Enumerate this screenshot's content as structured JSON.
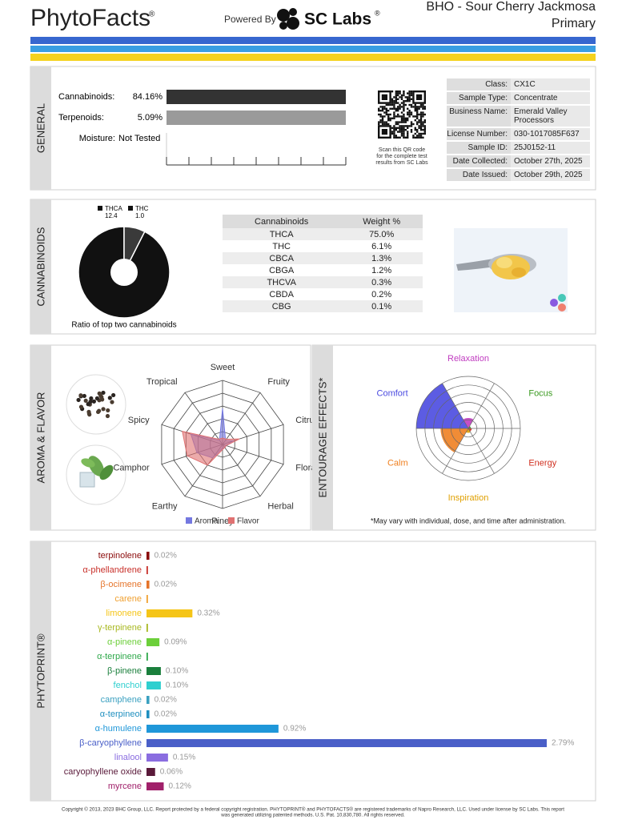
{
  "header": {
    "brand": "PhytoFacts",
    "brand_mark": "®",
    "powered_by": "Powered By",
    "lab": "SC Labs",
    "lab_mark": "®",
    "product": "BHO - Sour Cherry Jackmosa",
    "grade": "Primary"
  },
  "general": {
    "label": "GENERAL",
    "rows": [
      {
        "name": "Cannabinoids:",
        "value": 84.16,
        "value_label": "84.16%",
        "color": "#333333"
      },
      {
        "name": "Terpenoids:",
        "value": 5.09,
        "value_label": "5.09%",
        "color": "#9a9a9a"
      }
    ],
    "moisture": {
      "name": "Moisture:",
      "value": "Not Tested"
    },
    "qr_caption": [
      "Scan this QR code",
      "for the complete test",
      "results from SC Labs"
    ],
    "info": [
      {
        "label": "Class:",
        "value": "CX1C"
      },
      {
        "label": "Sample Type:",
        "value": "Concentrate"
      },
      {
        "label": "Business Name:",
        "value": "Emerald Valley Processors"
      },
      {
        "label": "License Number:",
        "value": "030-1017085F637"
      },
      {
        "label": "Sample ID:",
        "value": "25J0152-11"
      },
      {
        "label": "Date Collected:",
        "value": "October 27th, 2025"
      },
      {
        "label": "Date Issued:",
        "value": "October 29th, 2025"
      }
    ]
  },
  "cannabinoids": {
    "label": "CANNABINOIDS",
    "ratio": {
      "type": "pie",
      "caption": "Ratio of top two cannabinoids",
      "series": [
        {
          "name": "THCA",
          "value": 12.4,
          "color": "#111111"
        },
        {
          "name": "THC",
          "value": 1.0,
          "value_label": "1.0",
          "color": "#3a3a3a"
        }
      ]
    },
    "table": {
      "columns": [
        "Cannabinoids",
        "Weight %"
      ],
      "rows": [
        [
          "THCA",
          "75.0%"
        ],
        [
          "THC",
          "6.1%"
        ],
        [
          "CBCA",
          "1.3%"
        ],
        [
          "CBGA",
          "1.2%"
        ],
        [
          "THCVA",
          "0.3%"
        ],
        [
          "CBDA",
          "0.2%"
        ],
        [
          "CBG",
          "0.1%"
        ]
      ]
    }
  },
  "aroma_flavor": {
    "label": "AROMA & FLAVOR",
    "type": "radar",
    "categories": [
      "Sweet",
      "Fruity",
      "Citrusy",
      "Floral",
      "Herbal",
      "Piney",
      "Earthy",
      "Camphor",
      "Spicy",
      "Tropical"
    ],
    "rlim": [
      0,
      5
    ],
    "rticks": [
      1,
      2,
      3,
      4,
      5
    ],
    "series": [
      {
        "name": "Aroma",
        "color": "#7478e0",
        "values": [
          2.8,
          0.4,
          0.9,
          0.3,
          0.3,
          0.3,
          1.3,
          2.1,
          2.6,
          0.4
        ]
      },
      {
        "name": "Flavor",
        "color": "#e07272",
        "values": [
          0.5,
          0.5,
          1.4,
          0.3,
          0.3,
          0.4,
          2.0,
          2.9,
          3.3,
          0.5
        ]
      }
    ]
  },
  "entourage": {
    "label": "ENTOURAGE EFFECTS*",
    "type": "polar-area",
    "categories": [
      "Relaxation",
      "Focus",
      "Energy",
      "Inspiration",
      "Calm",
      "Comfort"
    ],
    "colors": [
      "#c03cc0",
      "#3a9a20",
      "#d03020",
      "#e0a000",
      "#f08020",
      "#4a4ae0"
    ],
    "rlim": [
      0,
      6
    ],
    "rticks": [
      1,
      2,
      3,
      4,
      5,
      6
    ],
    "values": [
      1.2,
      0.3,
      0.4,
      0.5,
      3.2,
      6
    ],
    "footnote": "*May vary with individual, dose, and time after administration."
  },
  "phytoprint": {
    "label": "PHYTOPRINT®",
    "type": "bar",
    "xlim": [
      0,
      2.79
    ],
    "categories": [
      "terpinolene",
      "α-phellandrene",
      "β-ocimene",
      "carene",
      "limonene",
      "γ-terpinene",
      "α-pinene",
      "α-terpinene",
      "β-pinene",
      "fenchol",
      "camphene",
      "α-terpineol",
      "α-humulene",
      "β-caryophyllene",
      "linalool",
      "caryophyllene oxide",
      "myrcene"
    ],
    "values": [
      0.02,
      0.01,
      0.02,
      0.01,
      0.32,
      0.01,
      0.09,
      0.01,
      0.1,
      0.1,
      0.02,
      0.02,
      0.92,
      2.79,
      0.15,
      0.06,
      0.12
    ],
    "value_labels": [
      "0.02%",
      null,
      "0.02%",
      null,
      "0.32%",
      null,
      "0.09%",
      null,
      "0.10%",
      "0.10%",
      "0.02%",
      "0.02%",
      "0.92%",
      "2.79%",
      "0.15%",
      "0.06%",
      "0.12%"
    ],
    "colors": [
      "#8b0a0a",
      "#c8302a",
      "#e5742a",
      "#f0a030",
      "#f5c518",
      "#a8b820",
      "#6ccf3a",
      "#2ea84a",
      "#1a7f3c",
      "#2ecfcf",
      "#3aa0c0",
      "#1f8fbf",
      "#1f97d9",
      "#4a5fc8",
      "#8a6de0",
      "#5a1a3a",
      "#a0206a"
    ]
  },
  "footer": [
    "Copyright © 2013, 2023 BHC Group, LLC. Report protected by a federal copyright registration. PHYTOPRINT® and PHYTOFACTS® are registered trademarks of Napro Research, LLC. Used under license by SC Labs. This report",
    "was generated utilizing patented methods. U.S. Pat. 10,830,780. All rights reserved."
  ]
}
